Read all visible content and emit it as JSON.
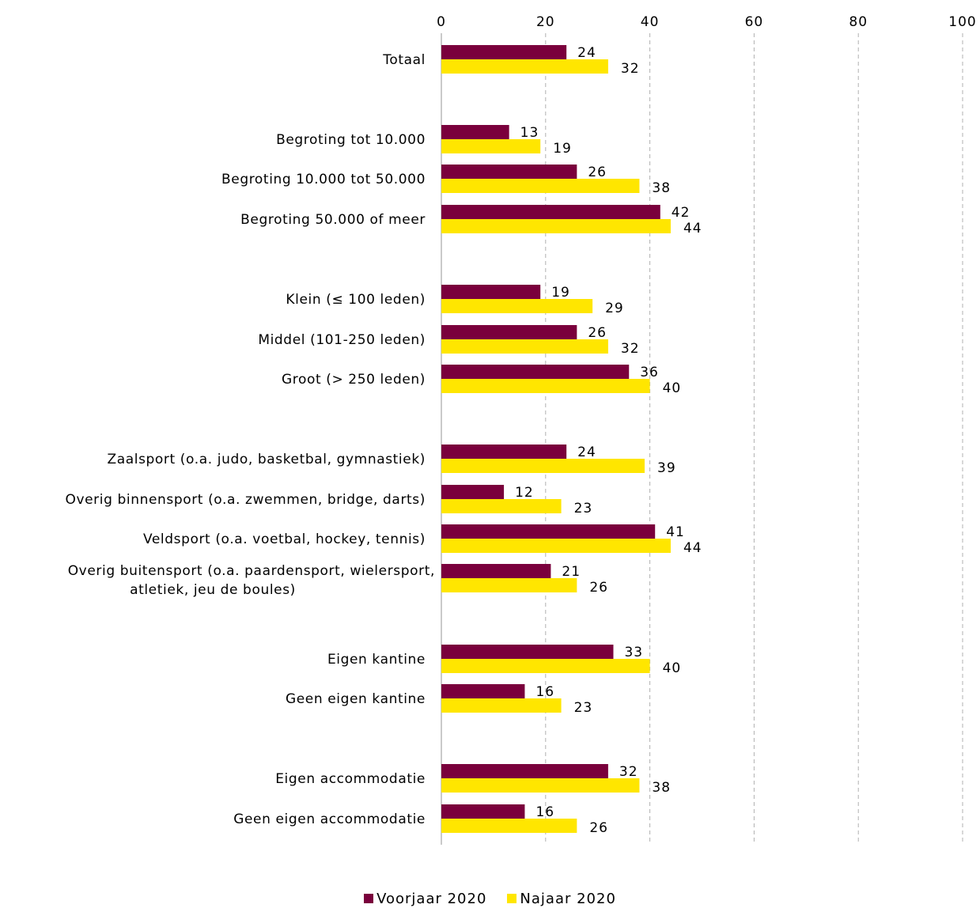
{
  "chart_data": {
    "type": "bar",
    "orientation": "horizontal",
    "xlim": [
      0,
      100
    ],
    "xticks": [
      "0",
      "20",
      "40",
      "60",
      "80",
      "100"
    ],
    "grid": true,
    "legend_position": "bottom",
    "categories": [
      [
        "Totaal"
      ],
      [
        "Begroting tot 10.000"
      ],
      [
        "Begroting 10.000 tot 50.000"
      ],
      [
        "Begroting 50.000 of meer"
      ],
      [
        "Klein (≤ 100 leden)"
      ],
      [
        "Middel (101-250 leden)"
      ],
      [
        "Groot (> 250 leden)"
      ],
      [
        "Zaalsport (o.a. judo, basketbal, gymnastiek)"
      ],
      [
        "Overig binnensport (o.a. zwemmen, bridge, darts)"
      ],
      [
        "Veldsport (o.a. voetbal, hockey, tennis)"
      ],
      [
        "Overig buitensport (o.a. paardensport, wielersport,",
        "atletiek, jeu de boules)"
      ],
      [
        "Eigen kantine"
      ],
      [
        "Geen eigen kantine"
      ],
      [
        "Eigen accommodatie"
      ],
      [
        "Geen eigen accommodatie"
      ]
    ],
    "series": [
      {
        "name": "Voorjaar 2020",
        "color": "#7a003c",
        "values": [
          24,
          13,
          26,
          42,
          19,
          26,
          36,
          24,
          12,
          41,
          21,
          33,
          16,
          32,
          16
        ]
      },
      {
        "name": "Najaar 2020",
        "color": "#ffe600",
        "values": [
          32,
          19,
          38,
          44,
          29,
          32,
          40,
          39,
          23,
          44,
          26,
          40,
          23,
          38,
          26
        ]
      }
    ]
  }
}
